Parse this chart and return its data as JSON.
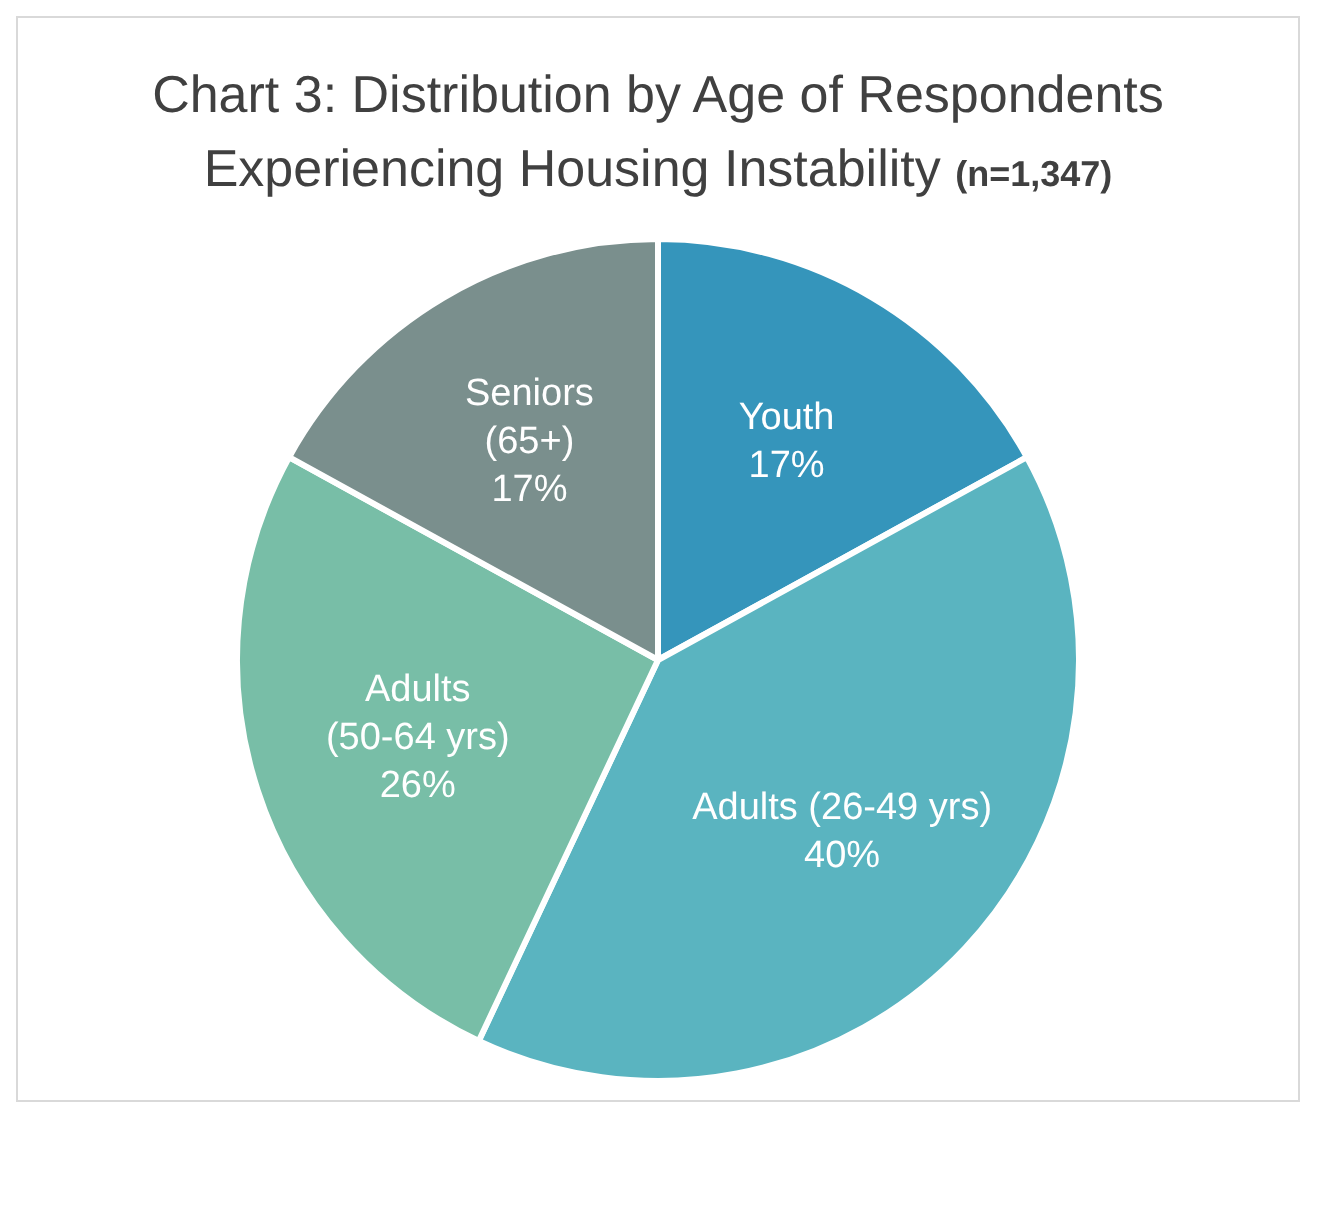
{
  "chart_data": {
    "type": "pie",
    "title": "Chart 3: Distribution by Age of Respondents Experiencing Housing Instability",
    "subtitle": "(n=1,347)",
    "categories": [
      "Youth",
      "Adults (26-49 yrs)",
      "Adults (50-64 yrs)",
      "Seniors (65+)"
    ],
    "values": [
      17,
      40,
      26,
      17
    ],
    "value_labels": [
      "17%",
      "40%",
      "26%",
      "17%"
    ],
    "colors": [
      "#3595bb",
      "#5ab4c0",
      "#78bea7",
      "#7a8f8d"
    ],
    "legend": false
  }
}
